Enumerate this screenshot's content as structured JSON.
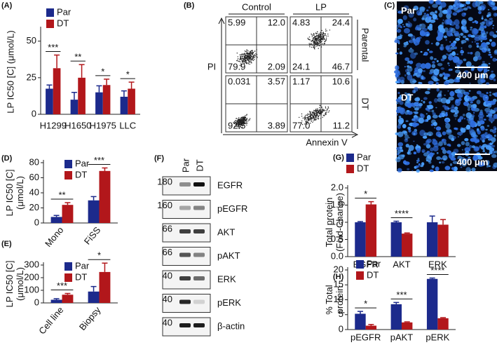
{
  "chart_data": [
    {
      "type": "bar",
      "label": "(A)",
      "ylabel": [
        "LP IC50 [C] (μmol/L)"
      ],
      "categories": [
        "H1299",
        "H1650",
        "H1975",
        "LLC"
      ],
      "series": [
        {
          "name": "Par",
          "color": "#1c2a8c",
          "values": [
            17.5,
            10,
            15,
            12
          ],
          "errors": [
            2.5,
            5,
            4.5,
            4
          ]
        },
        {
          "name": "DT",
          "color": "#b2171b",
          "values": [
            31.5,
            25,
            20,
            17.5
          ],
          "errors": [
            9,
            9,
            4,
            4.5
          ]
        }
      ],
      "significance": [
        "***",
        "**",
        "*",
        "*"
      ],
      "ylim": [
        0,
        58
      ],
      "yticks": [
        0,
        25,
        50
      ],
      "legend": "upper left"
    },
    {
      "type": "bar",
      "label": "(D)",
      "ylabel": [
        "LP IC50 [C]",
        "(μmol/L)"
      ],
      "categories": [
        "Mono",
        "FiSS"
      ],
      "series": [
        {
          "name": "Par",
          "color": "#1c2a8c",
          "values": [
            8,
            30
          ],
          "errors": [
            2,
            5
          ]
        },
        {
          "name": "DT",
          "color": "#b2171b",
          "values": [
            24,
            69
          ],
          "errors": [
            3,
            4
          ]
        }
      ],
      "significance": [
        "**",
        "***"
      ],
      "ylim": [
        0,
        80
      ],
      "yticks": [
        0,
        20,
        40,
        60,
        80
      ],
      "legend": "upper left"
    },
    {
      "type": "bar",
      "label": "(E)",
      "ylabel": [
        "LP IC50 [C]",
        "(μmol/L)"
      ],
      "categories": [
        "Cell line",
        "Biopsy"
      ],
      "series": [
        {
          "name": "Par",
          "color": "#1c2a8c",
          "values": [
            25,
            90
          ],
          "errors": [
            8,
            40
          ]
        },
        {
          "name": "DT",
          "color": "#b2171b",
          "values": [
            65,
            245
          ],
          "errors": [
            10,
            70
          ]
        }
      ],
      "significance": [
        "***",
        "*"
      ],
      "ylim": [
        0,
        300
      ],
      "yticks": [
        0,
        100,
        200,
        300
      ],
      "legend": "upper left"
    },
    {
      "type": "bar",
      "label": "(G)",
      "ylabel": [
        "Total protein",
        "(Fold-Change)"
      ],
      "categories": [
        "EGFR",
        "AKT",
        "ERK"
      ],
      "series": [
        {
          "name": "Par",
          "color": "#1c2a8c",
          "values": [
            1.0,
            1.0,
            1.0
          ],
          "errors": [
            0.02,
            0.03,
            0.18
          ]
        },
        {
          "name": "DT",
          "color": "#b2171b",
          "values": [
            1.52,
            0.67,
            0.93
          ],
          "errors": [
            0.08,
            0.02,
            0.15
          ]
        }
      ],
      "significance": [
        "*",
        "****",
        null
      ],
      "ylim": [
        0,
        2
      ],
      "yticks": [
        {
          "value": 0,
          "label": "0.0"
        },
        0.5,
        {
          "value": 1,
          "label": "1.0"
        },
        1.5,
        {
          "value": 2,
          "label": "2.0"
        }
      ],
      "legend": "upper left"
    },
    {
      "type": "bar",
      "label": "(H)",
      "ylabel": [
        "% Total",
        "protein"
      ],
      "categories": [
        "pEGFR",
        "pAKT",
        "pERK"
      ],
      "series": [
        {
          "name": "Par",
          "color": "#1c2a8c",
          "values": [
            5.3,
            8.5,
            17
          ],
          "errors": [
            0.8,
            0.6,
            0.3
          ]
        },
        {
          "name": "DT",
          "color": "#b2171b",
          "values": [
            1.3,
            2.4,
            3.8
          ],
          "errors": [
            0.4,
            0.2,
            0.2
          ]
        }
      ],
      "significance": [
        "*",
        "***",
        "****"
      ],
      "ylim": [
        0,
        20
      ],
      "yticks": [
        0,
        5,
        10,
        15,
        20
      ],
      "legend": "upper left"
    }
  ],
  "flow": {
    "label": "(B)",
    "columns": [
      "Control",
      "LP"
    ],
    "rows": [
      "Parental",
      "DT"
    ],
    "xlabel": "Annexin V",
    "ylabel": "PI",
    "quadrants": [
      [
        [
          5.99,
          {
            "value": 12,
            "label": "12.0"
          },
          79.9,
          2.09
        ],
        [
          4.83,
          24.4,
          24.1,
          46.7
        ]
      ],
      [
        [
          0.031,
          3.57,
          92.5,
          3.89
        ],
        [
          1.17,
          10.6,
          {
            "value": 77,
            "label": "77.0"
          },
          11.2
        ]
      ]
    ]
  },
  "images": {
    "label": "(C)",
    "panels": [
      {
        "name": "Par",
        "scale": "400 μm"
      },
      {
        "name": "DT",
        "scale": "400 μm"
      }
    ]
  },
  "blot": {
    "label": "(F)",
    "lanes": [
      "Par",
      "DT"
    ],
    "proteins": [
      "EGFR",
      "pEGFR",
      "AKT",
      "pAKT",
      "ERK",
      "pERK",
      "β-actin"
    ],
    "markers": [
      180,
      160,
      66,
      66,
      40,
      40,
      40
    ]
  }
}
